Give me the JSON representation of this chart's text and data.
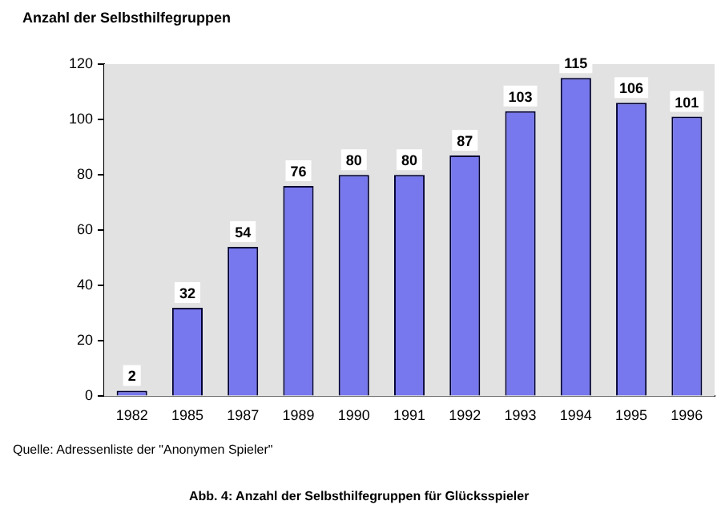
{
  "chart_data": {
    "type": "bar",
    "title": "Anzahl der Selbsthilfegruppen",
    "categories": [
      "1982",
      "1985",
      "1987",
      "1989",
      "1990",
      "1991",
      "1992",
      "1993",
      "1994",
      "1995",
      "1996"
    ],
    "values": [
      2,
      32,
      54,
      76,
      80,
      80,
      87,
      103,
      115,
      106,
      101
    ],
    "color": "#7777ee",
    "ylim": [
      0,
      120
    ],
    "yticks": [
      0,
      20,
      40,
      60,
      80,
      100,
      120
    ],
    "grid": false,
    "data_labels": true,
    "annotations": [
      "Quelle: Adressenliste der \"Anonymen Spieler\"",
      "Abb. 4: Anzahl der Selbsthilfegruppen für Glücksspieler"
    ]
  }
}
